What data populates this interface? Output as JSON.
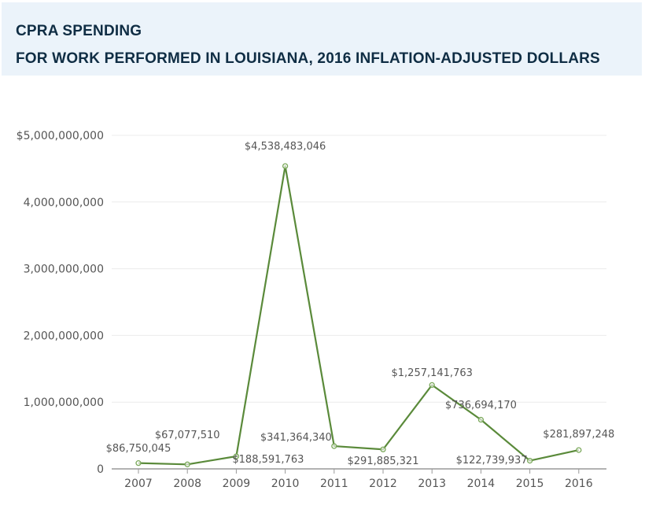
{
  "header": {
    "title": "CPRA SPENDING",
    "subtitle": "FOR WORK PERFORMED IN LOUISIANA, 2016 INFLATION-ADJUSTED DOLLARS"
  },
  "chart_data": {
    "type": "line",
    "title": "CPRA SPENDING",
    "subtitle": "FOR WORK PERFORMED IN LOUISIANA, 2016 INFLATION-ADJUSTED DOLLARS",
    "xlabel": "",
    "ylabel": "",
    "categories": [
      "2007",
      "2008",
      "2009",
      "2010",
      "2011",
      "2012",
      "2013",
      "2014",
      "2015",
      "2016"
    ],
    "series": [
      {
        "name": "CPRA Spending",
        "color": "#5a8a3a",
        "values": [
          86750045,
          67077510,
          188591763,
          4538483046,
          341364340,
          291885321,
          1257141763,
          736694170,
          122739937,
          281897248
        ],
        "labels": [
          "$86,750,045",
          "$67,077,510",
          "$188,591,763",
          "$4,538,483,046",
          "$341,364,340",
          "$291,885,321",
          "$1,257,141,763",
          "$736,694,170",
          "$122,739,937",
          "$281,897,248"
        ]
      }
    ],
    "ylim": [
      0,
      5000000000
    ],
    "yticks": [
      0,
      1000000000,
      2000000000,
      3000000000,
      4000000000,
      5000000000
    ],
    "ytick_labels": [
      "0",
      "1,000,000,000",
      "2,000,000,000",
      "3,000,000,000",
      "4,000,000,000",
      "$5,000,000,000"
    ],
    "grid": true,
    "legend": "none"
  }
}
